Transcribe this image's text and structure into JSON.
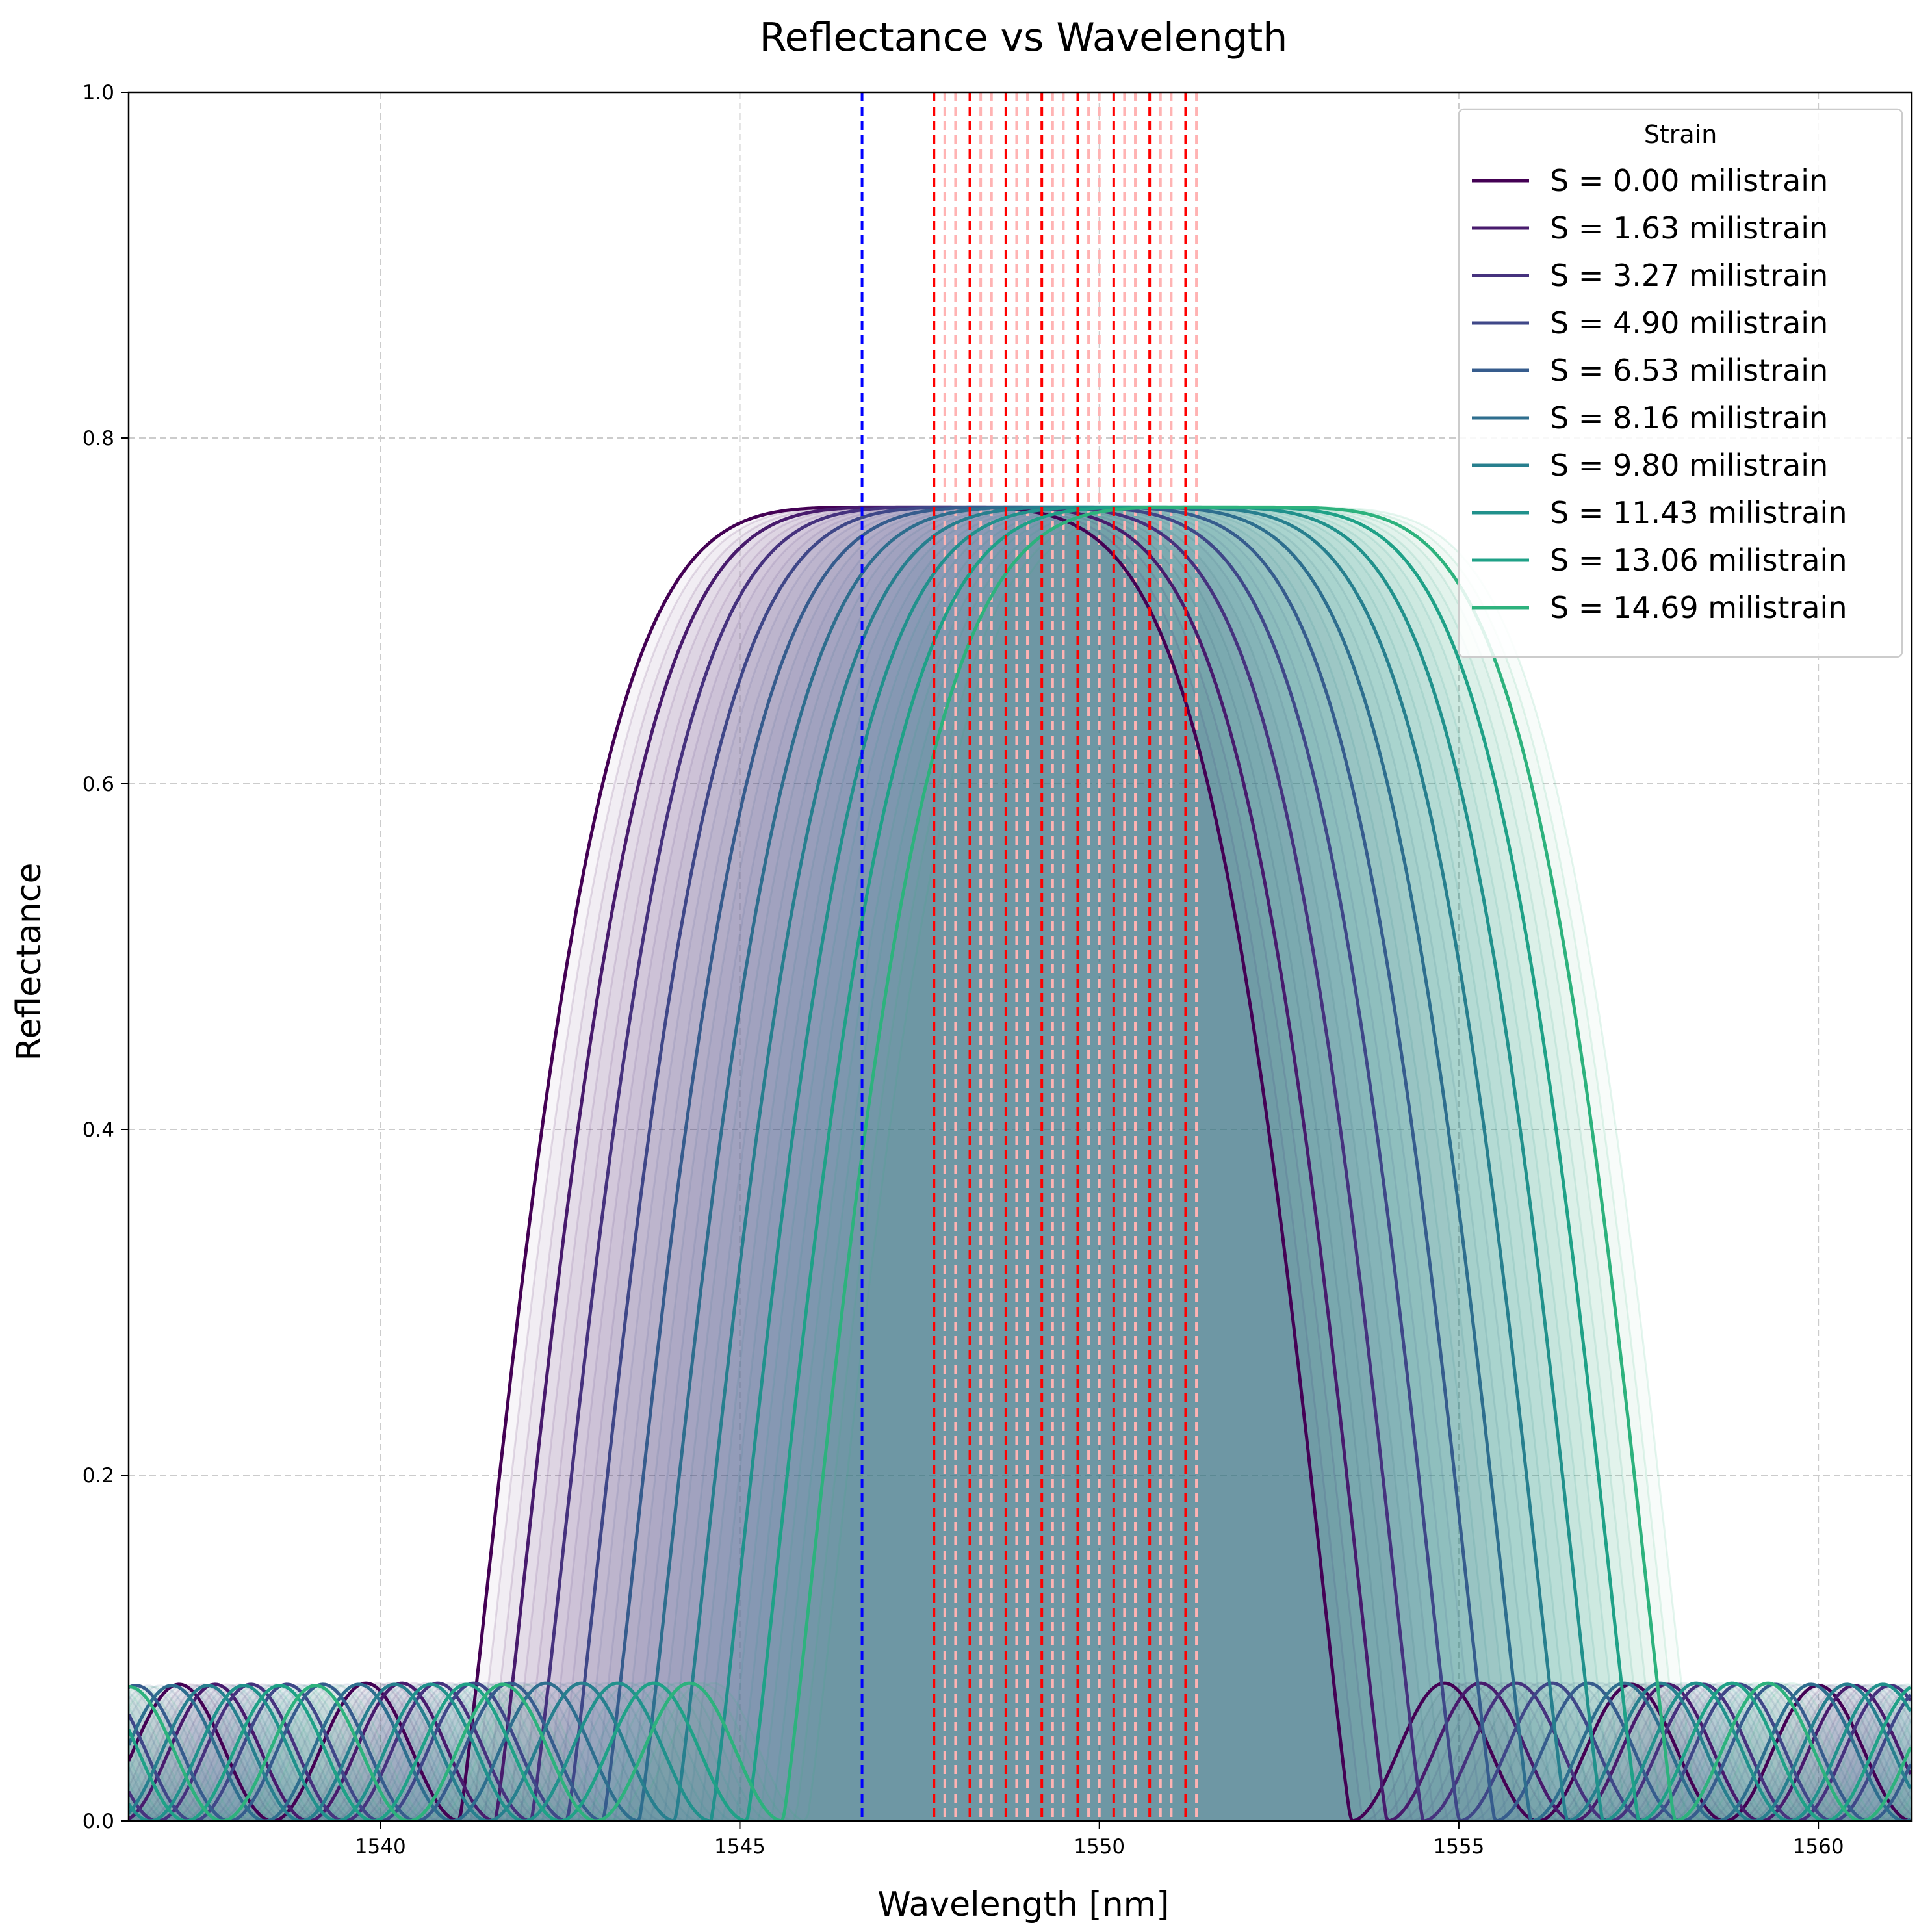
{
  "chart_data": {
    "type": "line",
    "title": "Reflectance vs Wavelength",
    "xlabel": "Wavelength [nm]",
    "ylabel": "Reflectance",
    "xlim": [
      1536.5,
      1561.3
    ],
    "ylim": [
      0.0,
      1.0
    ],
    "xticks": [
      1540,
      1545,
      1550,
      1555,
      1560
    ],
    "yticks": [
      0.0,
      0.2,
      0.4,
      0.6,
      0.8,
      1.0
    ],
    "grid": true,
    "legend": {
      "title": "Strain",
      "placement": "top-right",
      "entries": [
        "S = 0.00 milistrain",
        "S = 1.63 milistrain",
        "S = 3.27 milistrain",
        "S = 4.90 milistrain",
        "S = 6.53 milistrain",
        "S = 8.16 milistrain",
        "S = 9.80 milistrain",
        "S = 11.43 milistrain",
        "S = 13.06 milistrain",
        "S = 14.69 milistrain"
      ]
    },
    "spectrum_model": {
      "peak_reflectance": 0.76,
      "main_lobe_left_offset_nm": -5.6,
      "main_lobe_right_offset_nm": 6.8,
      "sidelobe_reflectance": 0.08
    },
    "series": [
      {
        "strain": 0.0,
        "center_wavelength": 1546.7,
        "color": "#440154"
      },
      {
        "strain": 1.63,
        "center_wavelength": 1547.2,
        "color": "#481b6d"
      },
      {
        "strain": 3.27,
        "center_wavelength": 1547.7,
        "color": "#46327e"
      },
      {
        "strain": 4.9,
        "center_wavelength": 1548.2,
        "color": "#3f4788"
      },
      {
        "strain": 6.53,
        "center_wavelength": 1548.7,
        "color": "#365c8d"
      },
      {
        "strain": 8.16,
        "center_wavelength": 1549.2,
        "color": "#2e6e8e"
      },
      {
        "strain": 9.8,
        "center_wavelength": 1549.7,
        "color": "#277f8e"
      },
      {
        "strain": 11.43,
        "center_wavelength": 1550.2,
        "color": "#21918c"
      },
      {
        "strain": 13.06,
        "center_wavelength": 1550.7,
        "color": "#1fa187"
      },
      {
        "strain": 14.69,
        "center_wavelength": 1551.2,
        "color": "#2db27d"
      }
    ],
    "reference_line": {
      "x": 1546.7,
      "color": "#0000ff"
    },
    "shift_markers": {
      "color": "#ff0000",
      "x": [
        1547.7,
        1548.2,
        1548.7,
        1549.2,
        1549.7,
        1550.2,
        1550.7,
        1551.2
      ]
    },
    "faint_markers": {
      "color": "#ffb3b3",
      "x": [
        1547.85,
        1548.0,
        1548.35,
        1548.5,
        1548.85,
        1549.0,
        1549.35,
        1549.5,
        1549.85,
        1550.0,
        1550.35,
        1550.5,
        1550.85,
        1551.0,
        1551.35
      ]
    }
  }
}
